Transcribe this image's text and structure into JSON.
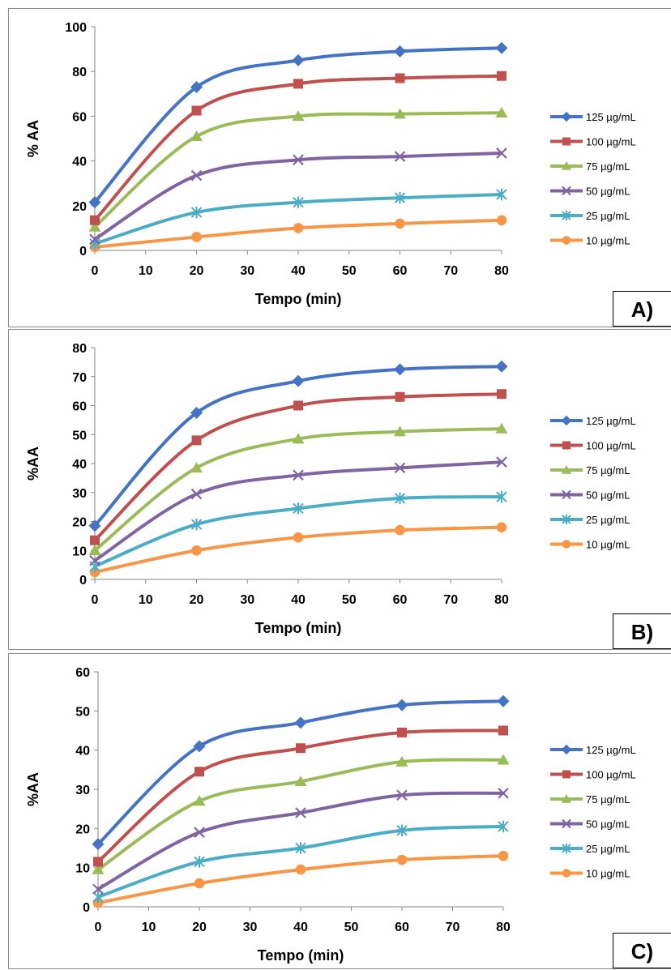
{
  "chart_data": [
    {
      "type": "line",
      "panel_label": "A)",
      "xlabel": "Tempo (min)",
      "ylabel": "% AA",
      "xlim": [
        0,
        80
      ],
      "ylim": [
        0,
        100
      ],
      "xticks": [
        "0",
        "10",
        "20",
        "30",
        "40",
        "50",
        "60",
        "70",
        "80"
      ],
      "yticks": [
        "0",
        "20",
        "40",
        "60",
        "80",
        "100"
      ],
      "grid": false,
      "legend_position": "right",
      "x": [
        0,
        20,
        40,
        60,
        80
      ],
      "series": [
        {
          "name": "125 µg/mL",
          "values": [
            21.5,
            73,
            85,
            89,
            90.5
          ],
          "color": "#4472c4",
          "marker": "diamond"
        },
        {
          "name": "100 µg/mL",
          "values": [
            13.5,
            62.5,
            74.5,
            77,
            78
          ],
          "color": "#c0504d",
          "marker": "square"
        },
        {
          "name": "75 µg/mL",
          "values": [
            10.5,
            51,
            60,
            61,
            61.5
          ],
          "color": "#9bbb59",
          "marker": "triangle"
        },
        {
          "name": "50 µg/mL",
          "values": [
            5,
            33.5,
            40.5,
            42,
            43.5
          ],
          "color": "#8064a2",
          "marker": "x"
        },
        {
          "name": "25 µg/mL",
          "values": [
            3,
            17,
            21.5,
            23.5,
            25
          ],
          "color": "#4bacc6",
          "marker": "star"
        },
        {
          "name": "10 µg/mL",
          "values": [
            1.5,
            6,
            10,
            12,
            13.5
          ],
          "color": "#f79646",
          "marker": "circle"
        }
      ]
    },
    {
      "type": "line",
      "panel_label": "B)",
      "xlabel": "Tempo (min)",
      "ylabel": "%AA",
      "xlim": [
        0,
        80
      ],
      "ylim": [
        0,
        80
      ],
      "xticks": [
        "0",
        "10",
        "20",
        "30",
        "40",
        "50",
        "60",
        "70",
        "80"
      ],
      "yticks": [
        "0",
        "10",
        "20",
        "30",
        "40",
        "50",
        "60",
        "70",
        "80"
      ],
      "grid": false,
      "legend_position": "right",
      "x": [
        0,
        20,
        40,
        60,
        80
      ],
      "series": [
        {
          "name": "125 µg/mL",
          "values": [
            18.5,
            57.5,
            68.5,
            72.5,
            73.5
          ],
          "color": "#4472c4",
          "marker": "diamond"
        },
        {
          "name": "100 µg/mL",
          "values": [
            13.5,
            48,
            60,
            63,
            64
          ],
          "color": "#c0504d",
          "marker": "square"
        },
        {
          "name": "75 µg/mL",
          "values": [
            10,
            38.5,
            48.5,
            51,
            52
          ],
          "color": "#9bbb59",
          "marker": "triangle"
        },
        {
          "name": "50 µg/mL",
          "values": [
            6.5,
            29.5,
            36,
            38.5,
            40.5
          ],
          "color": "#8064a2",
          "marker": "x"
        },
        {
          "name": "25 µg/mL",
          "values": [
            4.5,
            19,
            24.5,
            28,
            28.5
          ],
          "color": "#4bacc6",
          "marker": "star"
        },
        {
          "name": "10 µg/mL",
          "values": [
            2.5,
            10,
            14.5,
            17,
            18
          ],
          "color": "#f79646",
          "marker": "circle"
        }
      ]
    },
    {
      "type": "line",
      "panel_label": "C)",
      "xlabel": "Tempo (min)",
      "ylabel": "%AA",
      "xlim": [
        0,
        80
      ],
      "ylim": [
        0,
        60
      ],
      "xticks": [
        "0",
        "10",
        "20",
        "30",
        "40",
        "50",
        "60",
        "70",
        "80"
      ],
      "yticks": [
        "0",
        "10",
        "20",
        "30",
        "40",
        "50",
        "60"
      ],
      "grid": false,
      "legend_position": "right",
      "x": [
        0,
        20,
        40,
        60,
        80
      ],
      "series": [
        {
          "name": "125 µg/mL",
          "values": [
            16,
            41,
            47,
            51.5,
            52.5
          ],
          "color": "#4472c4",
          "marker": "diamond"
        },
        {
          "name": "100 µg/mL",
          "values": [
            11.5,
            34.5,
            40.5,
            44.5,
            45
          ],
          "color": "#c0504d",
          "marker": "square"
        },
        {
          "name": "75 µg/mL",
          "values": [
            9.5,
            27,
            32,
            37,
            37.5
          ],
          "color": "#9bbb59",
          "marker": "triangle"
        },
        {
          "name": "50 µg/mL",
          "values": [
            4.5,
            19,
            24,
            28.5,
            29
          ],
          "color": "#8064a2",
          "marker": "x"
        },
        {
          "name": "25 µg/mL",
          "values": [
            2.5,
            11.5,
            15,
            19.5,
            20.5
          ],
          "color": "#4bacc6",
          "marker": "star"
        },
        {
          "name": "10 µg/mL",
          "values": [
            1,
            6,
            9.5,
            12,
            13
          ],
          "color": "#f79646",
          "marker": "circle"
        }
      ]
    }
  ]
}
